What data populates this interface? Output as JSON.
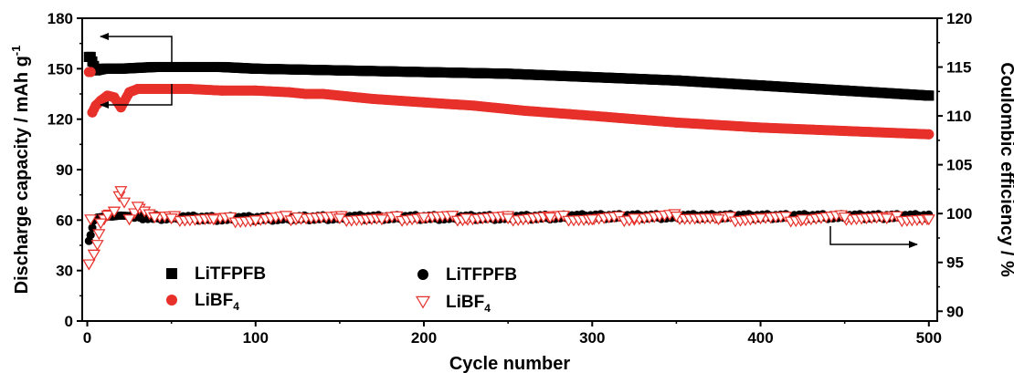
{
  "chart_data": {
    "type": "scatter",
    "xlabel": "Cycle number",
    "ylabel_left": "Discharge capacity / mAh g",
    "ylabel_left_superscript": "-1",
    "ylabel_right": "Coulombic efficiency / %",
    "xlim": [
      -3,
      505
    ],
    "ylim_left": [
      0,
      180
    ],
    "ylim_right": [
      89,
      120
    ],
    "x_ticks": [
      0,
      100,
      200,
      300,
      400,
      500
    ],
    "y_ticks_left": [
      0,
      30,
      60,
      90,
      120,
      150,
      180
    ],
    "y_ticks_right": [
      90,
      95,
      100,
      105,
      110,
      115,
      120
    ],
    "grid": false,
    "series": [
      {
        "name": "LiTFPFB",
        "name_sub": "",
        "axis": "left",
        "quantity": "discharge capacity",
        "marker": "square",
        "color": "#000000",
        "x": [
          1,
          2,
          5,
          10,
          20,
          40,
          60,
          80,
          100,
          150,
          200,
          250,
          300,
          350,
          400,
          450,
          500
        ],
        "y": [
          157,
          157,
          149,
          150,
          150,
          151,
          151,
          151,
          150,
          149,
          148,
          147,
          145,
          143,
          140,
          137,
          134
        ]
      },
      {
        "name": "LiBF",
        "name_sub": "4",
        "axis": "left",
        "quantity": "discharge capacity",
        "marker": "circle",
        "color": "#e8302a",
        "x": [
          1,
          2,
          3,
          5,
          8,
          12,
          16,
          20,
          25,
          30,
          40,
          50,
          60,
          80,
          100,
          120,
          130,
          140,
          150,
          170,
          200,
          230,
          260,
          300,
          350,
          400,
          450,
          500
        ],
        "y": [
          148,
          148,
          124,
          128,
          131,
          134,
          133,
          127,
          136,
          138,
          138,
          138,
          138,
          137,
          137,
          136,
          135,
          135,
          134,
          132,
          130,
          128,
          125,
          122,
          118,
          115,
          113,
          111
        ]
      },
      {
        "name": "LiTFPFB",
        "name_sub": "",
        "axis": "right",
        "quantity": "coulombic efficiency",
        "marker": "circle",
        "color": "#000000",
        "x": [
          1,
          2,
          4,
          6,
          10,
          15,
          20,
          30,
          40,
          50,
          75,
          100,
          150,
          200,
          250,
          300,
          350,
          400,
          450,
          500
        ],
        "y": [
          97.2,
          97.8,
          99.3,
          99.6,
          99.7,
          99.7,
          99.8,
          99.7,
          99.6,
          99.6,
          99.5,
          99.5,
          99.6,
          99.6,
          99.6,
          99.7,
          99.7,
          99.7,
          99.7,
          99.7
        ]
      },
      {
        "name": "LiBF",
        "name_sub": "4",
        "axis": "right",
        "quantity": "coulombic efficiency",
        "marker": "triangle-down-open",
        "color": "#e8302a",
        "x": [
          1,
          2,
          4,
          6,
          8,
          12,
          16,
          20,
          25,
          30,
          40,
          50,
          75,
          100,
          125,
          150,
          175,
          200,
          225,
          250,
          275,
          300,
          325,
          350,
          375,
          400,
          425,
          450,
          475,
          500
        ],
        "y": [
          94.8,
          99.4,
          95.8,
          96.8,
          99.0,
          99.8,
          100.2,
          102.3,
          99.4,
          100.7,
          99.6,
          99.5,
          99.4,
          99.3,
          99.6,
          99.5,
          99.4,
          99.6,
          99.5,
          99.5,
          99.6,
          99.4,
          99.5,
          99.7,
          99.4,
          99.5,
          99.4,
          99.6,
          99.5,
          99.4
        ]
      }
    ],
    "legend_left": {
      "placement": "bottom-left",
      "entries": [
        {
          "label": "LiTFPFB",
          "sub": "",
          "marker": "square",
          "color": "#000000"
        },
        {
          "label": "LiBF",
          "sub": "4",
          "marker": "circle",
          "color": "#e8302a"
        }
      ]
    },
    "legend_right": {
      "placement": "bottom-center",
      "entries": [
        {
          "label": "LiTFPFB",
          "sub": "",
          "marker": "circle",
          "color": "#000000"
        },
        {
          "label": "LiBF",
          "sub": "4",
          "marker": "triangle-down-open",
          "color": "#e8302a"
        }
      ]
    },
    "annotations": [
      {
        "type": "arrow",
        "points_to": "left axis"
      },
      {
        "type": "arrow",
        "points_to": "left axis"
      },
      {
        "type": "arrow",
        "points_to": "right axis"
      }
    ]
  }
}
